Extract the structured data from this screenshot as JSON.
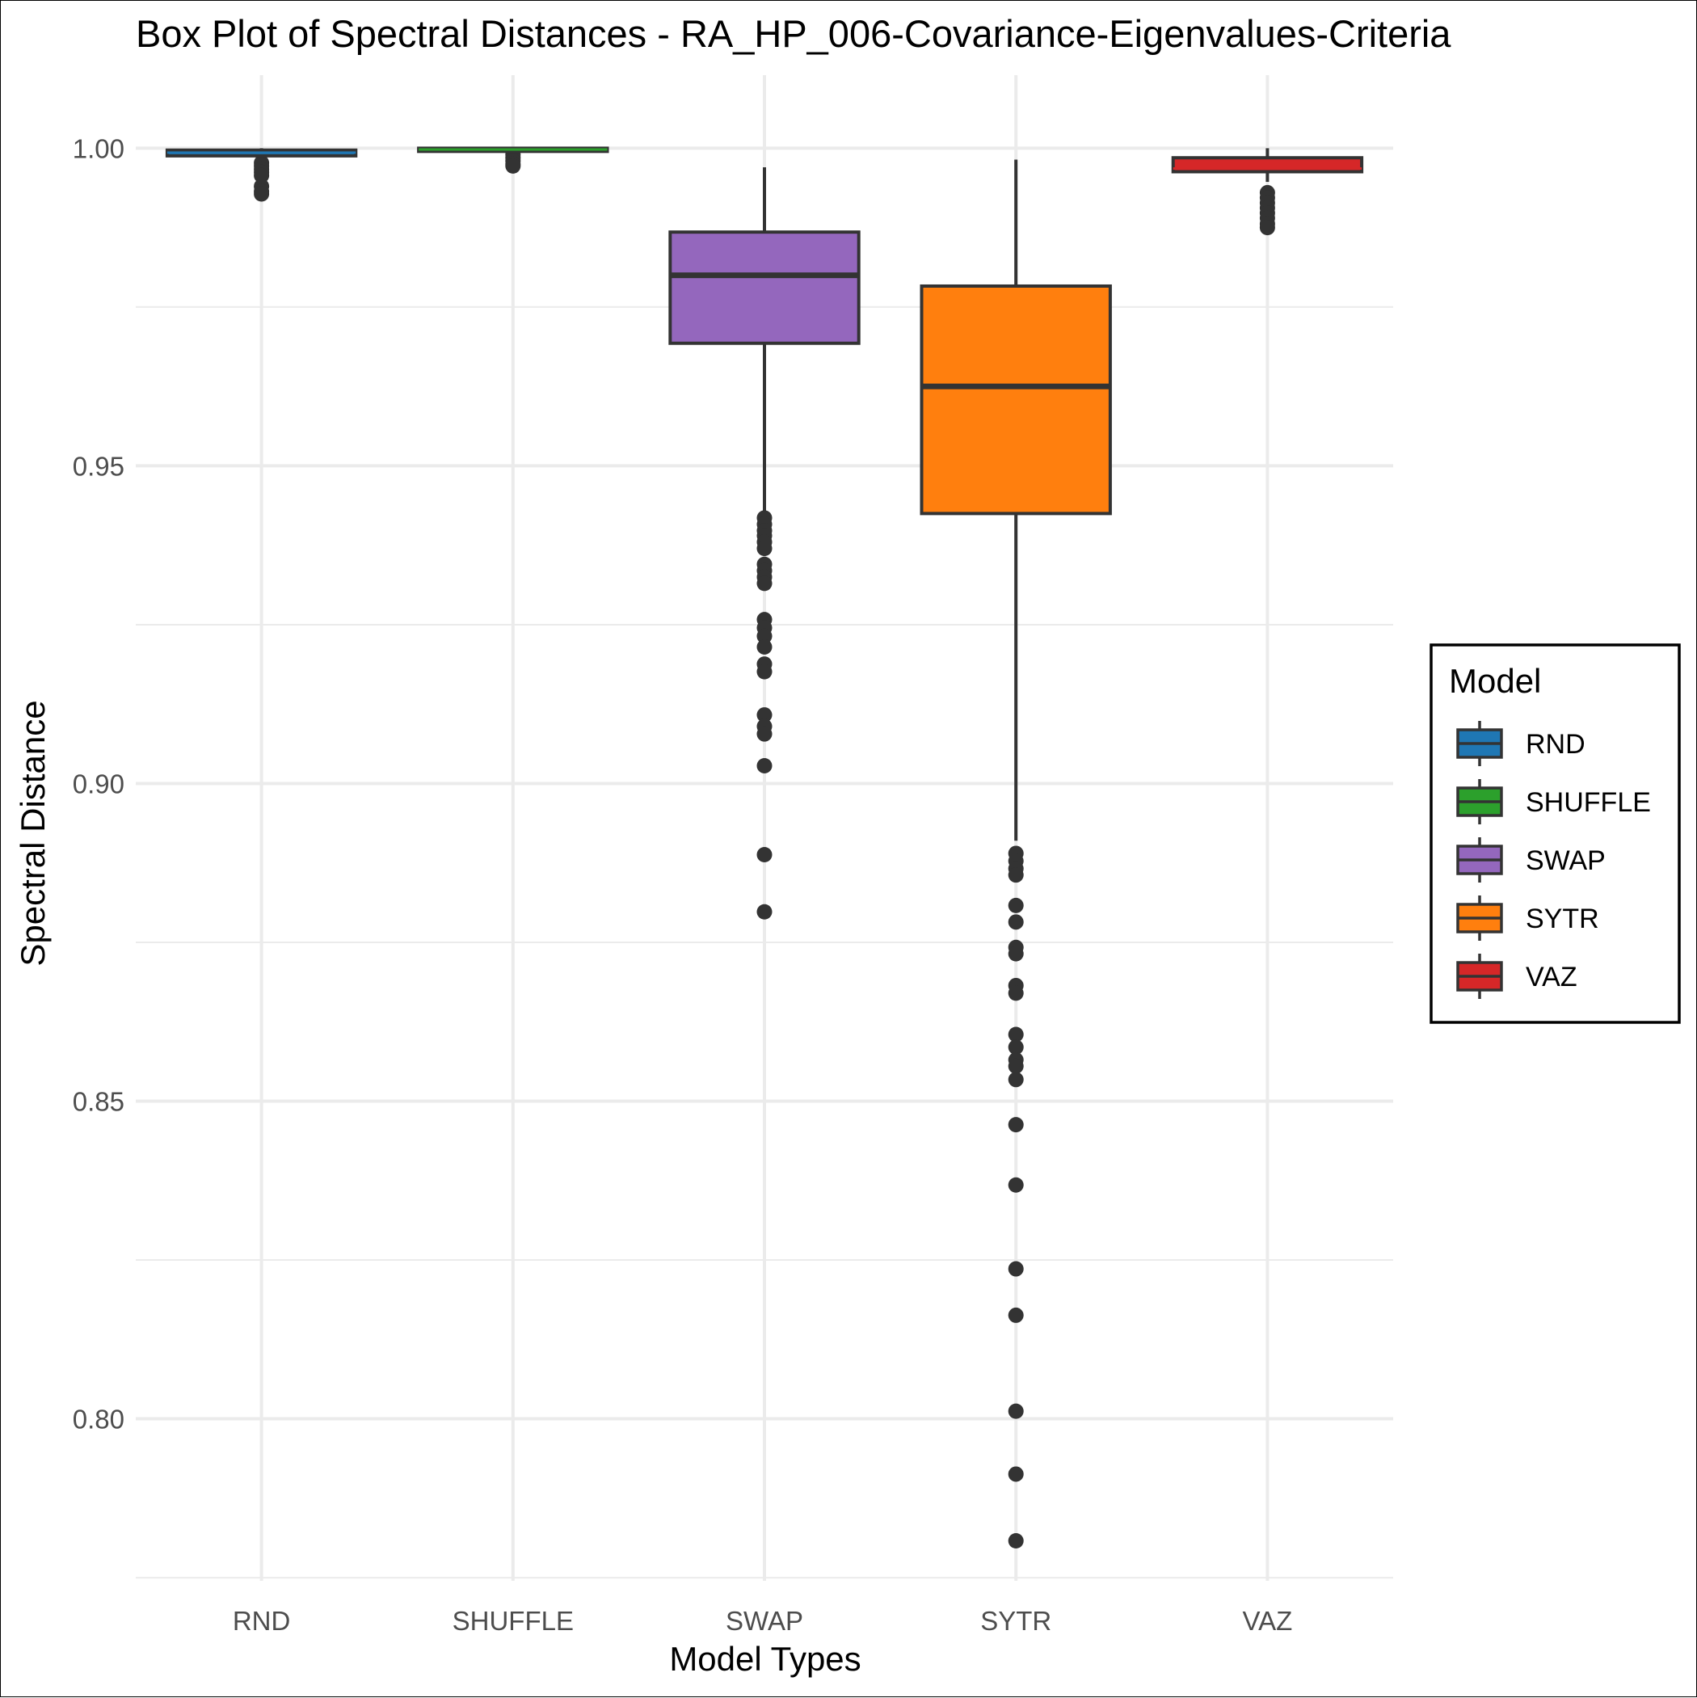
{
  "chart_data": {
    "type": "box",
    "title": "Box Plot of Spectral Distances -  RA_HP_006-Covariance-Eigenvalues-Criteria",
    "xlabel": "Model Types",
    "ylabel": "Spectral Distance",
    "ylim": [
      0.7745,
      1.0115
    ],
    "y_ticks": [
      0.8,
      0.85,
      0.9,
      0.95,
      1.0
    ],
    "y_tick_labels": [
      "0.80",
      "0.85",
      "0.90",
      "0.95",
      "1.00"
    ],
    "grid": true,
    "categories": [
      "RND",
      "SHUFFLE",
      "SWAP",
      "SYTR",
      "VAZ"
    ],
    "legend": {
      "title": "Model",
      "position": "right",
      "entries": [
        "RND",
        "SHUFFLE",
        "SWAP",
        "SYTR",
        "VAZ"
      ]
    },
    "series": [
      {
        "name": "RND",
        "color": "#1f77b4",
        "min": 0.9986,
        "q1": 0.9988,
        "median": 0.9993,
        "q3": 0.9997,
        "max": 1.0,
        "outliers": [
          0.9977,
          0.9972,
          0.9967,
          0.9962,
          0.9957,
          0.994,
          0.9932,
          0.9928
        ]
      },
      {
        "name": "SHUFFLE",
        "color": "#2ca02c",
        "min": 0.9993,
        "q1": 0.9995,
        "median": 0.9998,
        "q3": 1.0,
        "max": 1.0,
        "outliers": [
          0.999,
          0.9985,
          0.998,
          0.9975,
          0.9972
        ]
      },
      {
        "name": "SWAP",
        "color": "#9467bd",
        "min": 0.9415,
        "q1": 0.9693,
        "median": 0.98,
        "q3": 0.9868,
        "max": 0.997,
        "outliers": [
          0.9418,
          0.9408,
          0.9398,
          0.939,
          0.938,
          0.937,
          0.9345,
          0.9335,
          0.9325,
          0.9315,
          0.9258,
          0.9245,
          0.9232,
          0.9215,
          0.9188,
          0.9176,
          0.9108,
          0.909,
          0.9078,
          0.9028,
          0.8888,
          0.8798
        ]
      },
      {
        "name": "SYTR",
        "color": "#ff7f0e",
        "min": 0.891,
        "q1": 0.9425,
        "median": 0.9625,
        "q3": 0.9783,
        "max": 0.9982,
        "outliers": [
          0.889,
          0.8878,
          0.8866,
          0.8856,
          0.8808,
          0.8782,
          0.8742,
          0.8732,
          0.8682,
          0.867,
          0.8605,
          0.8585,
          0.8565,
          0.8555,
          0.8534,
          0.8463,
          0.8368,
          0.8236,
          0.8163,
          0.8012,
          0.7913,
          0.7808
        ]
      },
      {
        "name": "VAZ",
        "color": "#d62728",
        "min": 0.9947,
        "q1": 0.9963,
        "median": 0.9968,
        "q3": 0.9985,
        "max": 1.0,
        "outliers": [
          0.993,
          0.9922,
          0.9914,
          0.9906,
          0.9898,
          0.989,
          0.9881,
          0.9875
        ]
      }
    ]
  }
}
